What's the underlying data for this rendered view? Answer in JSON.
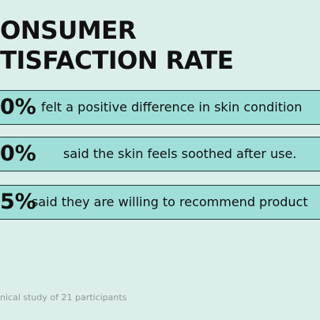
{
  "header": {
    "title_lines": [
      "ONSUMER",
      "TISFACTION RATE"
    ]
  },
  "stats": [
    {
      "percent": "0%",
      "text": "felt a positive difference in skin condition"
    },
    {
      "percent": "0%",
      "text": "said the skin feels soothed after use."
    },
    {
      "percent": "5%",
      "text": "said they are willing to recommend product"
    }
  ],
  "footnote": "nical study of 21 participants"
}
